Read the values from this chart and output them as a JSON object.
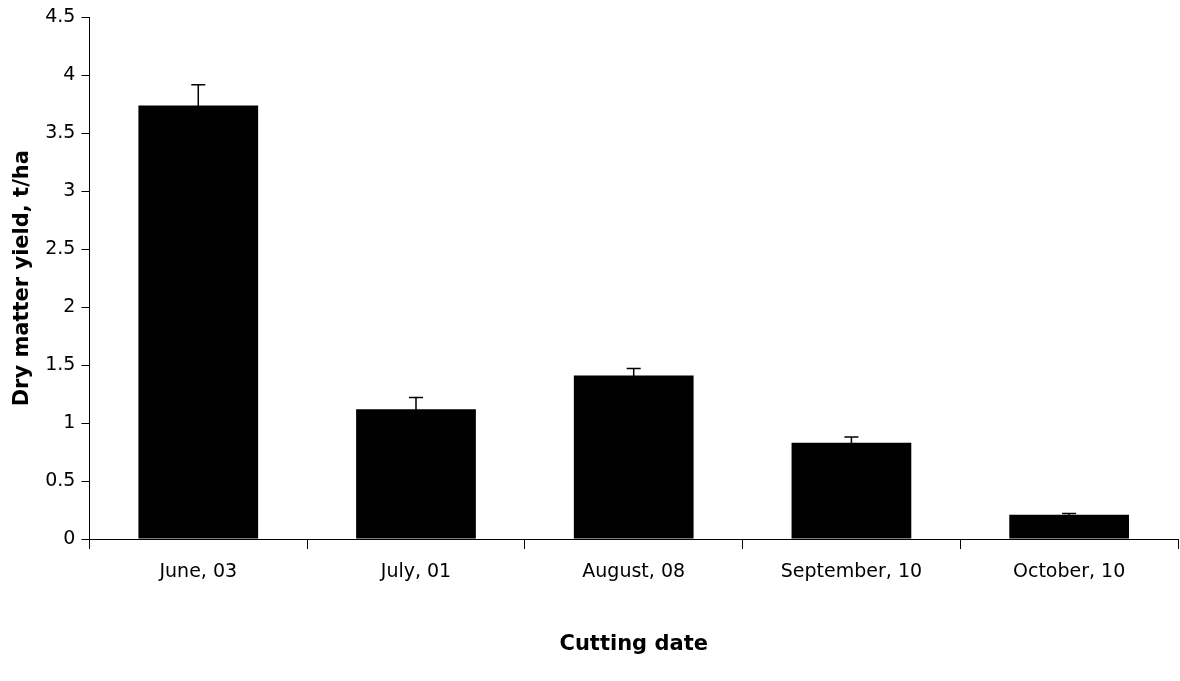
{
  "chart_data": {
    "type": "bar",
    "xlabel": "Cutting date",
    "ylabel": "Dry matter yield, t/ha",
    "categories": [
      "June, 03",
      "July, 01",
      "August, 08",
      "September, 10",
      "October, 10"
    ],
    "values": [
      3.74,
      1.12,
      1.41,
      0.83,
      0.21
    ],
    "errors": [
      0.18,
      0.1,
      0.06,
      0.05,
      0.01
    ],
    "color": "#000000",
    "ylim": [
      0,
      4.5
    ],
    "yticks": [
      0,
      0.5,
      1,
      1.5,
      2,
      2.5,
      3,
      3.5,
      4,
      4.5
    ],
    "grid": false,
    "legend": false
  }
}
